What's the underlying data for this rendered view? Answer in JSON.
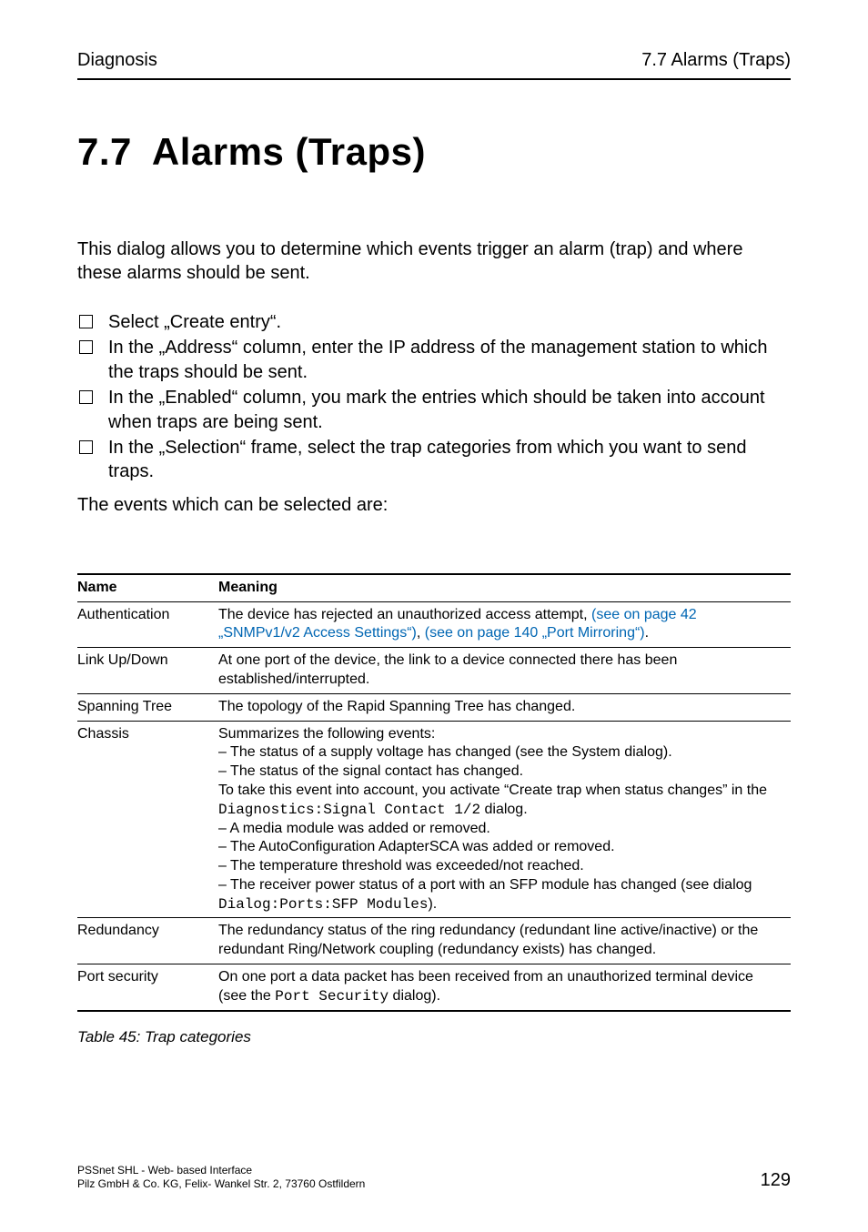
{
  "header": {
    "left": "Diagnosis",
    "right": "7.7 Alarms (Traps)"
  },
  "title": {
    "number": "7.7",
    "text": "Alarms (Traps)"
  },
  "intro": "This dialog allows you to determine which events trigger an alarm (trap) and where these alarms should be sent.",
  "checklist": [
    "Select „Create entry“.",
    "In the „Address“ column, enter the IP address of the management station to which the traps should be sent.",
    "In the „Enabled“ column, you mark the entries which should be taken into account when traps are being sent.",
    "In the „Selection“ frame, select the trap categories from which you want to send traps."
  ],
  "tail": "The events which can be selected are:",
  "table": {
    "columns": [
      "Name",
      "Meaning"
    ],
    "rows": {
      "authentication": {
        "name": "Authentication",
        "pre": "The device has rejected an unauthorized access attempt, ",
        "link1": "(see on page 42 „SNMPv1/v2 Access Settings“)",
        "mid": ", ",
        "link2": "(see on page 140 „Port Mirroring“)",
        "post": "."
      },
      "linkupdown": {
        "name": "Link Up/Down",
        "text": "At one port of the device, the link to a device connected there has been established/interrupted."
      },
      "spanning": {
        "name": "Spanning Tree",
        "text": "The topology of the Rapid Spanning Tree has changed."
      },
      "chassis": {
        "name": "Chassis",
        "l1": "Summarizes the following events:",
        "l2": "– The status of a supply voltage has changed (see the System dialog).",
        "l3": "– The status of the signal contact has changed.",
        "l4a": "To take this event into account, you activate “Create trap when status changes” in the ",
        "l4mono": "Diagnostics:Signal Contact 1/2",
        "l4b": " dialog.",
        "l5": "– A media module was added or removed.",
        "l6": "– The AutoConfiguration AdapterSCA was added or removed.",
        "l7": "– The temperature threshold was exceeded/not reached.",
        "l8a": "– The receiver power status of a port with an SFP module has changed (see dialog ",
        "l8mono": "Dialog:Ports:SFP Modules",
        "l8b": ")."
      },
      "redundancy": {
        "name": "Redundancy",
        "text": "The redundancy status of the ring redundancy (redundant line active/inactive) or the redundant Ring/Network coupling (redundancy exists) has changed."
      },
      "portsecurity": {
        "name": "Port security",
        "pre": "On one port a data packet has been received from an unauthorized terminal device (see the ",
        "mono": "Port Security",
        "post": " dialog)."
      }
    }
  },
  "caption": "Table 45: Trap categories",
  "footer": {
    "line1": "PSSnet SHL - Web- based Interface",
    "line2": "Pilz GmbH & Co. KG, Felix- Wankel Str. 2, 73760 Ostfildern",
    "page": "129"
  }
}
